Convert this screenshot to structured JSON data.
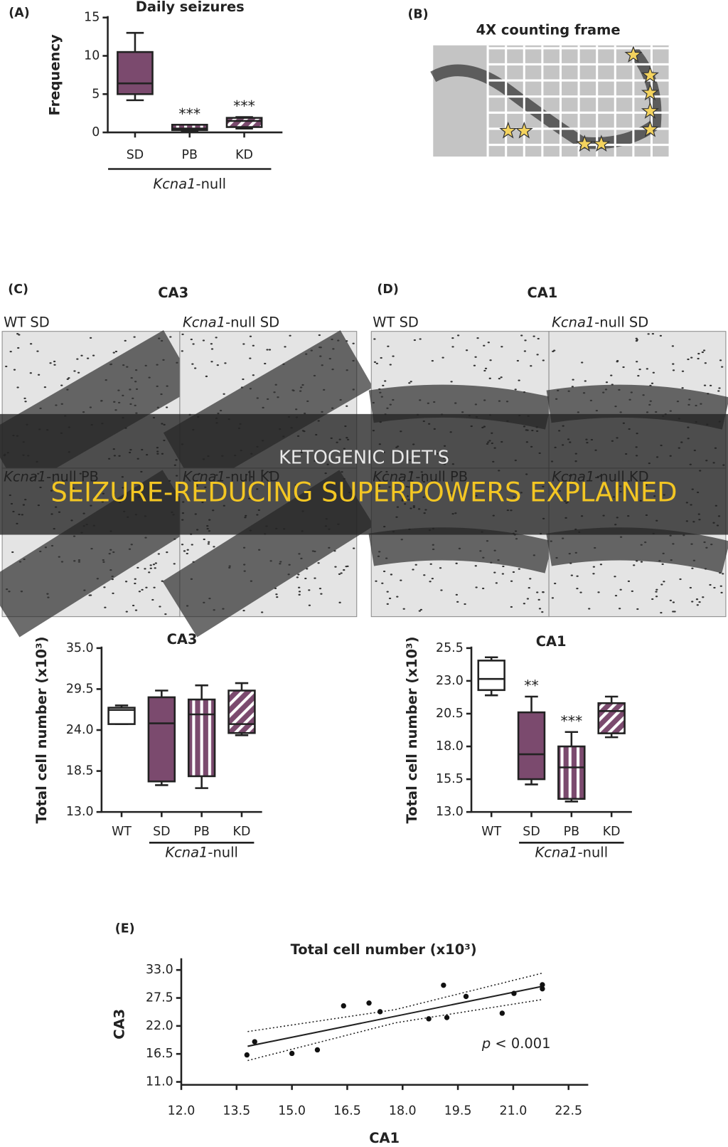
{
  "banner": {
    "line1": "KETOGENIC DIET'S",
    "line2": "SEIZURE-REDUCING SUPERPOWERS EXPLAINED"
  },
  "panel_b": {
    "label": "(B)",
    "title": "4X counting frame"
  },
  "panel_c": {
    "label": "(C)",
    "title": "CA3",
    "tiles": [
      {
        "text": "WT SD"
      },
      {
        "prefix": "Kcna1",
        "text": "-null SD"
      },
      {
        "prefix": "Kcna1",
        "text": "-null PB"
      },
      {
        "prefix": "Kcna1",
        "text": "-null KD"
      }
    ]
  },
  "panel_d": {
    "label": "(D)",
    "title": "CA1",
    "tiles": [
      {
        "text": "WT SD"
      },
      {
        "prefix": "Kcna1",
        "text": "-null SD"
      },
      {
        "prefix": "Kcna1",
        "text": "-null PB"
      },
      {
        "prefix": "Kcna1",
        "text": "-null KD"
      }
    ]
  },
  "chart_data": [
    {
      "type": "box",
      "panel_label": "(A)",
      "title": "Daily seizures",
      "ylabel": "Frequency",
      "categories": [
        "SD",
        "PB",
        "KD"
      ],
      "boxes": [
        {
          "min": 4.2,
          "q1": 5,
          "median": 6.4,
          "q3": 10.5,
          "max": 13,
          "color": "#7b4a6e",
          "pattern": "solid"
        },
        {
          "min": 0.2,
          "q1": 0.3,
          "median": 0.5,
          "q3": 1,
          "max": 1,
          "color": "#7b4a6e",
          "pattern": "vertical-stripes"
        },
        {
          "min": 0.5,
          "q1": 0.7,
          "median": 1.5,
          "q3": 1.9,
          "max": 2,
          "color": "#7b4a6e",
          "pattern": "diagonal-stripes"
        }
      ],
      "annotations": [
        null,
        "***",
        "***"
      ],
      "ylim": [
        0,
        15
      ],
      "yticks": [
        0,
        5,
        10,
        15
      ],
      "group": {
        "members": [
          "SD",
          "PB",
          "KD"
        ],
        "prefix": "Kcna1",
        "text": "-null"
      }
    },
    {
      "type": "box",
      "title": "CA3",
      "ylabel": "Total cell number (x10³)",
      "categories": [
        "WT",
        "SD",
        "PB",
        "KD"
      ],
      "boxes": [
        {
          "min": 24.8,
          "q1": 24.8,
          "median": 26.7,
          "q3": 27.0,
          "max": 27.3,
          "color": "#ffffff",
          "pattern": "solid"
        },
        {
          "min": 16.6,
          "q1": 17.1,
          "median": 24.9,
          "q3": 28.4,
          "max": 29.3,
          "color": "#7b4a6e",
          "pattern": "solid"
        },
        {
          "min": 16.2,
          "q1": 17.8,
          "median": 26.1,
          "q3": 28.1,
          "max": 30.0,
          "color": "#7b4a6e",
          "pattern": "vertical-stripes"
        },
        {
          "min": 23.3,
          "q1": 23.6,
          "median": 24.8,
          "q3": 29.3,
          "max": 30.3,
          "color": "#7b4a6e",
          "pattern": "diagonal-stripes"
        }
      ],
      "annotations": [
        null,
        null,
        null,
        null
      ],
      "ylim": [
        13,
        35
      ],
      "yticks": [
        {
          "value": 13,
          "label": "13.0"
        },
        18.5,
        {
          "value": 24,
          "label": "24.0"
        },
        29.5,
        {
          "value": 35,
          "label": "35.0"
        }
      ],
      "group": {
        "members": [
          "SD",
          "PB",
          "KD"
        ],
        "prefix": "Kcna1",
        "text": "-null"
      }
    },
    {
      "type": "box",
      "title": "CA1",
      "ylabel": "Total cell number (x10³)",
      "categories": [
        "WT",
        "SD",
        "PB",
        "KD"
      ],
      "boxes": [
        {
          "min": 21.9,
          "q1": 22.3,
          "median": 23.15,
          "q3": 24.55,
          "max": 24.8,
          "color": "#ffffff",
          "pattern": "solid"
        },
        {
          "min": 15.1,
          "q1": 15.5,
          "median": 17.4,
          "q3": 20.6,
          "max": 21.8,
          "color": "#7b4a6e",
          "pattern": "solid"
        },
        {
          "min": 13.8,
          "q1": 14.0,
          "median": 16.4,
          "q3": 18.0,
          "max": 19.1,
          "color": "#7b4a6e",
          "pattern": "vertical-stripes"
        },
        {
          "min": 18.7,
          "q1": 19.0,
          "median": 20.7,
          "q3": 21.3,
          "max": 21.8,
          "color": "#7b4a6e",
          "pattern": "diagonal-stripes"
        }
      ],
      "annotations": [
        null,
        "**",
        "***",
        null
      ],
      "ylim": [
        13,
        25.5
      ],
      "yticks": [
        {
          "value": 13,
          "label": "13.0"
        },
        15.5,
        {
          "value": 18,
          "label": "18.0"
        },
        20.5,
        {
          "value": 23,
          "label": "23.0"
        },
        25.5
      ],
      "group": {
        "members": [
          "SD",
          "PB",
          "KD"
        ],
        "prefix": "Kcna1",
        "text": "-null"
      }
    },
    {
      "type": "scatter",
      "panel_label": "(E)",
      "title": "Total cell number (x10³)",
      "xlabel": "CA1",
      "ylabel": "CA3",
      "x": [
        13.78,
        13.99,
        15.0,
        15.69,
        16.4,
        17.09,
        17.39,
        18.71,
        19.11,
        19.2,
        19.72,
        20.7,
        21.02,
        21.79,
        21.79
      ],
      "y": [
        16.3,
        18.9,
        16.6,
        17.3,
        25.95,
        26.5,
        24.8,
        23.4,
        30.0,
        23.65,
        27.8,
        24.5,
        28.4,
        30.1,
        29.3
      ],
      "point_color": "#111111",
      "fit": {
        "x": [
          13.8,
          21.8
        ],
        "y": [
          18.0,
          29.8
        ]
      },
      "ci_upper": {
        "x": [
          13.8,
          17.8,
          21.8
        ],
        "y": [
          20.9,
          25.2,
          32.4
        ]
      },
      "ci_lower": {
        "x": [
          13.8,
          17.8,
          21.8
        ],
        "y": [
          15.2,
          22.6,
          27.2
        ]
      },
      "annotation": {
        "italic": "p",
        "text": " < 0.001"
      },
      "xlim": [
        12,
        22.5
      ],
      "xticks": [
        {
          "value": 12,
          "label": "12.0"
        },
        13.5,
        {
          "value": 15,
          "label": "15.0"
        },
        16.5,
        {
          "value": 18,
          "label": "18.0"
        },
        19.5,
        {
          "value": 21,
          "label": "21.0"
        },
        22.5
      ],
      "ylim": [
        11,
        33
      ],
      "yticks": [
        {
          "value": 11,
          "label": "11.0"
        },
        16.5,
        {
          "value": 22,
          "label": "22.0"
        },
        27.5,
        {
          "value": 33,
          "label": "33.0"
        }
      ]
    }
  ]
}
